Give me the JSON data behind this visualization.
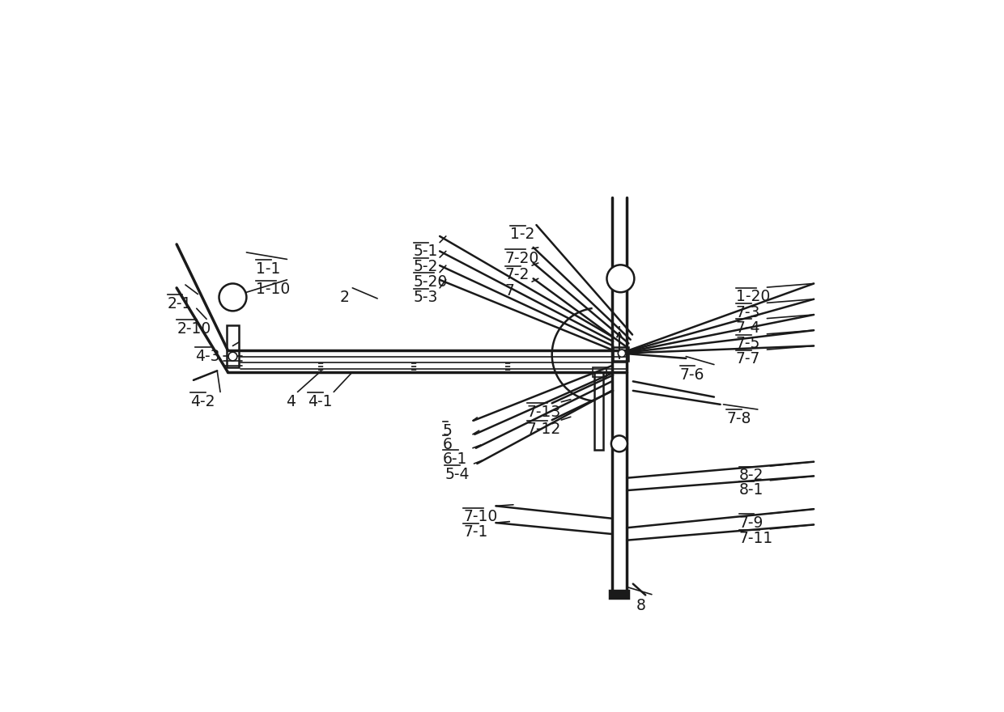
{
  "bg_color": "#ffffff",
  "line_color": "#1a1a1a",
  "lw_thin": 1.2,
  "lw_med": 1.8,
  "lw_thick": 2.5,
  "labels": [
    [
      "8",
      815,
      58,
      false
    ],
    [
      "7-1",
      538,
      175,
      true
    ],
    [
      "7-10",
      538,
      200,
      true
    ],
    [
      "5-4",
      508,
      268,
      true
    ],
    [
      "6-1",
      505,
      293,
      true
    ],
    [
      "6",
      505,
      316,
      true
    ],
    [
      "5",
      505,
      338,
      true
    ],
    [
      "7-12",
      640,
      340,
      true
    ],
    [
      "7-13",
      640,
      368,
      true
    ],
    [
      "7-11",
      980,
      165,
      true
    ],
    [
      "7-9",
      980,
      190,
      true
    ],
    [
      "8-1",
      980,
      243,
      true
    ],
    [
      "8-2",
      980,
      266,
      true
    ],
    [
      "7-8",
      960,
      358,
      true
    ],
    [
      "7-6",
      885,
      428,
      true
    ],
    [
      "7-7",
      975,
      453,
      true
    ],
    [
      "7-5",
      975,
      478,
      true
    ],
    [
      "7-4",
      975,
      503,
      true
    ],
    [
      "7-3",
      975,
      528,
      true
    ],
    [
      "1-20",
      975,
      553,
      true
    ],
    [
      "4-2",
      100,
      385,
      true
    ],
    [
      "4",
      253,
      385,
      false
    ],
    [
      "4-1",
      288,
      385,
      true
    ],
    [
      "4-3",
      108,
      458,
      true
    ],
    [
      "2-10",
      78,
      502,
      true
    ],
    [
      "2-1",
      63,
      542,
      true
    ],
    [
      "1-10",
      205,
      565,
      true
    ],
    [
      "2",
      340,
      552,
      false
    ],
    [
      "1-1",
      205,
      598,
      true
    ],
    [
      "5-3",
      458,
      552,
      true
    ],
    [
      "5-20",
      458,
      577,
      true
    ],
    [
      "5-2",
      458,
      601,
      true
    ],
    [
      "5-1",
      458,
      626,
      true
    ],
    [
      "7",
      605,
      562,
      false
    ],
    [
      "7-2",
      605,
      588,
      true
    ],
    [
      "7-20",
      605,
      615,
      true
    ],
    [
      "1-2",
      613,
      653,
      true
    ]
  ]
}
